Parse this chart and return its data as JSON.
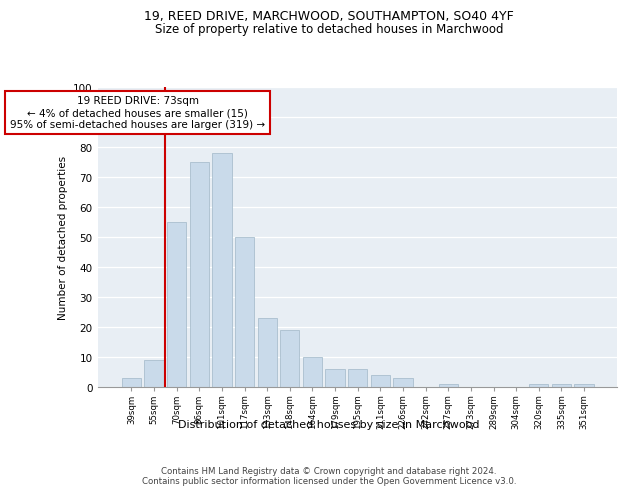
{
  "title1": "19, REED DRIVE, MARCHWOOD, SOUTHAMPTON, SO40 4YF",
  "title2": "Size of property relative to detached houses in Marchwood",
  "xlabel": "Distribution of detached houses by size in Marchwood",
  "ylabel": "Number of detached properties",
  "categories": [
    "39sqm",
    "55sqm",
    "70sqm",
    "86sqm",
    "101sqm",
    "117sqm",
    "133sqm",
    "148sqm",
    "164sqm",
    "179sqm",
    "195sqm",
    "211sqm",
    "226sqm",
    "242sqm",
    "257sqm",
    "273sqm",
    "289sqm",
    "304sqm",
    "320sqm",
    "335sqm",
    "351sqm"
  ],
  "values": [
    3,
    9,
    55,
    75,
    78,
    50,
    23,
    19,
    10,
    6,
    6,
    4,
    3,
    0,
    1,
    0,
    0,
    0,
    1,
    1,
    1
  ],
  "bar_color": "#c9daea",
  "bar_edge_color": "#aabfce",
  "vline_color": "#cc0000",
  "annotation_box_edge_color": "#cc0000",
  "ylim": [
    0,
    100
  ],
  "yticks": [
    0,
    10,
    20,
    30,
    40,
    50,
    60,
    70,
    80,
    90,
    100
  ],
  "plot_bg_color": "#e8eef4",
  "footer1": "Contains HM Land Registry data © Crown copyright and database right 2024.",
  "footer2": "Contains public sector information licensed under the Open Government Licence v3.0.",
  "annotation_line1": "19 REED DRIVE: 73sqm",
  "annotation_line2": "← 4% of detached houses are smaller (15)",
  "annotation_line3": "95% of semi-detached houses are larger (319) →"
}
